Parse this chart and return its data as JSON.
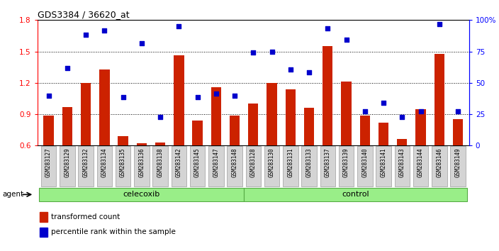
{
  "title": "GDS3384 / 36620_at",
  "categories": [
    "GSM283127",
    "GSM283129",
    "GSM283132",
    "GSM283134",
    "GSM283135",
    "GSM283136",
    "GSM283138",
    "GSM283142",
    "GSM283145",
    "GSM283147",
    "GSM283148",
    "GSM283128",
    "GSM283130",
    "GSM283131",
    "GSM283133",
    "GSM283137",
    "GSM283139",
    "GSM283140",
    "GSM283141",
    "GSM283143",
    "GSM283144",
    "GSM283146",
    "GSM283149"
  ],
  "bar_values": [
    0.89,
    0.97,
    1.2,
    1.33,
    0.69,
    0.62,
    0.63,
    1.46,
    0.84,
    1.16,
    0.89,
    1.0,
    1.2,
    1.14,
    0.96,
    1.55,
    1.21,
    0.89,
    0.82,
    0.66,
    0.95,
    1.48,
    0.85
  ],
  "scatter_values": [
    1.08,
    1.34,
    1.66,
    1.7,
    1.06,
    1.58,
    0.87,
    1.74,
    1.06,
    1.1,
    1.08,
    1.49,
    1.5,
    1.33,
    1.3,
    1.72,
    1.61,
    0.93,
    1.01,
    0.87,
    0.93,
    1.76,
    0.93
  ],
  "celecoxib_count": 11,
  "control_count": 12,
  "bar_color": "#cc2200",
  "scatter_color": "#0000cc",
  "ylim_left": [
    0.6,
    1.8
  ],
  "ylim_right": [
    0.0,
    1.0
  ],
  "yticks_left": [
    0.6,
    0.9,
    1.2,
    1.5,
    1.8
  ],
  "yticks_right": [
    0.0,
    0.25,
    0.5,
    0.75,
    1.0
  ],
  "ytick_labels_right": [
    "0",
    "25",
    "50",
    "75",
    "100%"
  ],
  "hlines": [
    0.9,
    1.2,
    1.5
  ],
  "green_color": "#99ee88",
  "green_border": "#55aa44",
  "agent_label": "agent",
  "celecoxib_label": "celecoxib",
  "control_label": "control",
  "legend_bar": "transformed count",
  "legend_scatter": "percentile rank within the sample"
}
